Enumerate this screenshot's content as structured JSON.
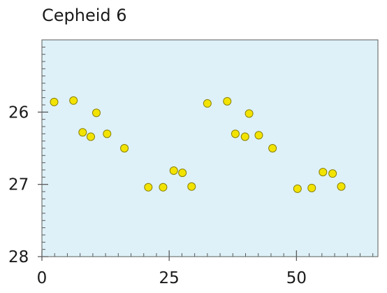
{
  "chart_data": {
    "type": "scatter",
    "title": "Cepheid 6",
    "xlabel": "",
    "ylabel": "",
    "xlim": [
      0,
      66
    ],
    "ylim": [
      28,
      25
    ],
    "y_inverted": true,
    "grid": false,
    "x_ticks": [
      0,
      25,
      50
    ],
    "x_tick_labels": [
      "0",
      "25",
      "50"
    ],
    "y_ticks": [
      26,
      27,
      28
    ],
    "y_tick_labels": [
      "26",
      "27",
      "28"
    ],
    "colors": {
      "plot_background": "#def1f8",
      "marker_fill": "#f2e400",
      "marker_edge": "#8a7f00",
      "axis": "#5a5a5a"
    },
    "series": [
      {
        "points": [
          [
            2.4,
            25.86
          ],
          [
            6.2,
            25.84
          ],
          [
            8.0,
            26.28
          ],
          [
            9.6,
            26.34
          ],
          [
            10.7,
            26.01
          ],
          [
            12.8,
            26.3
          ],
          [
            16.2,
            26.5
          ],
          [
            20.9,
            27.04
          ],
          [
            23.8,
            27.04
          ],
          [
            25.9,
            26.81
          ],
          [
            27.6,
            26.84
          ],
          [
            29.4,
            27.03
          ],
          [
            32.5,
            25.88
          ],
          [
            36.4,
            25.85
          ],
          [
            38.0,
            26.3
          ],
          [
            39.9,
            26.34
          ],
          [
            40.7,
            26.02
          ],
          [
            42.6,
            26.32
          ],
          [
            45.3,
            26.5
          ],
          [
            50.2,
            27.06
          ],
          [
            53.0,
            27.05
          ],
          [
            55.2,
            26.83
          ],
          [
            57.1,
            26.85
          ],
          [
            58.8,
            27.03
          ]
        ]
      }
    ]
  }
}
